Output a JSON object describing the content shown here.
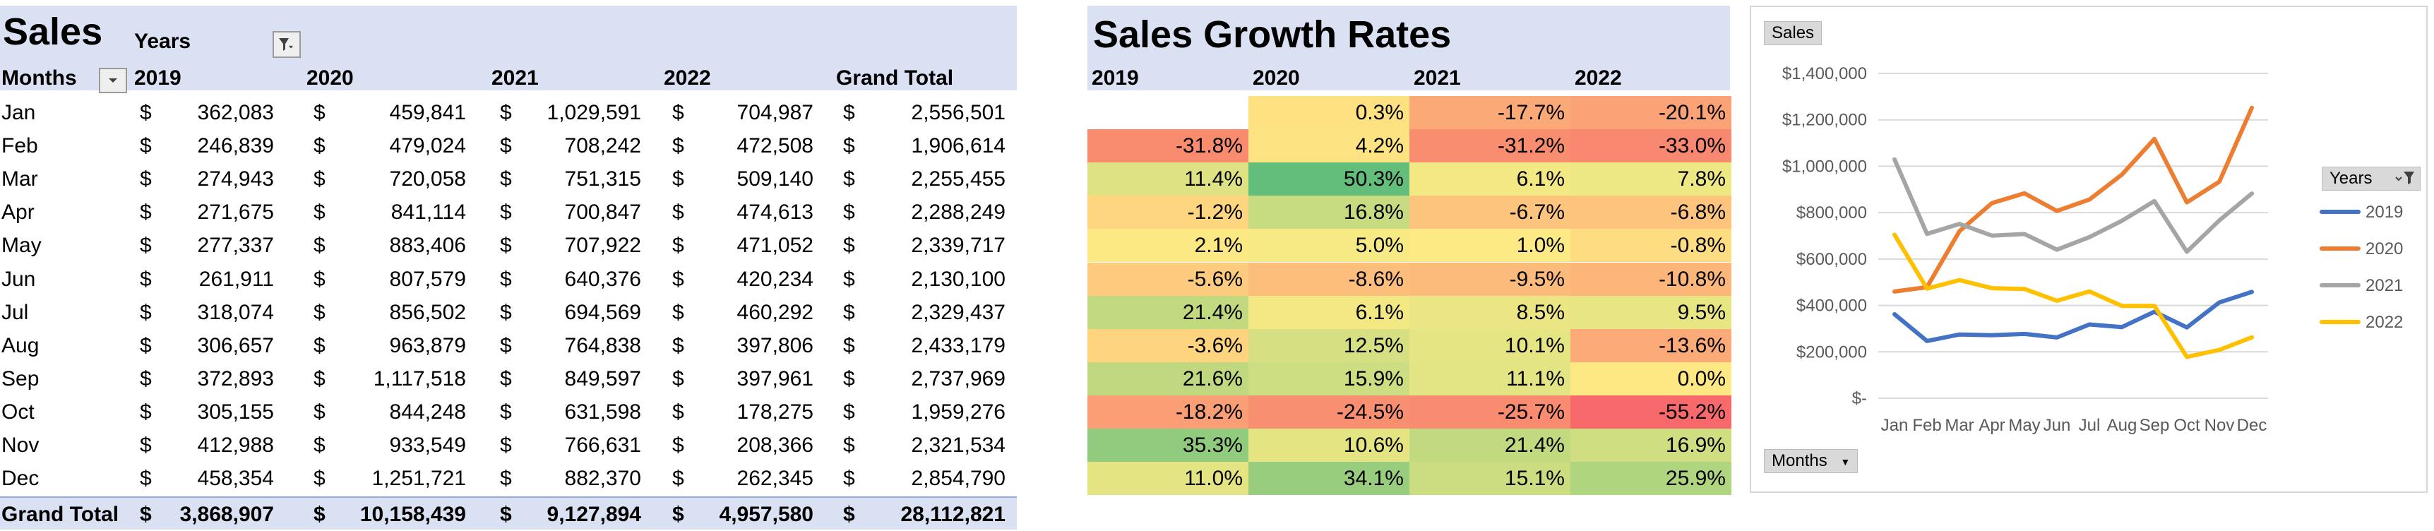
{
  "pivot": {
    "title": "Sales",
    "years_label": "Years",
    "months_label": "Months",
    "years": [
      "2019",
      "2020",
      "2021",
      "2022"
    ],
    "grand_total_label": "Grand Total",
    "currency": "$",
    "rows": [
      {
        "month": "Jan",
        "values": [
          "362,083",
          "459,841",
          "1,029,591",
          "704,987"
        ],
        "total": "2,556,501"
      },
      {
        "month": "Feb",
        "values": [
          "246,839",
          "479,024",
          "708,242",
          "472,508"
        ],
        "total": "1,906,614"
      },
      {
        "month": "Mar",
        "values": [
          "274,943",
          "720,058",
          "751,315",
          "509,140"
        ],
        "total": "2,255,455"
      },
      {
        "month": "Apr",
        "values": [
          "271,675",
          "841,114",
          "700,847",
          "474,613"
        ],
        "total": "2,288,249"
      },
      {
        "month": "May",
        "values": [
          "277,337",
          "883,406",
          "707,922",
          "471,052"
        ],
        "total": "2,339,717"
      },
      {
        "month": "Jun",
        "values": [
          "261,911",
          "807,579",
          "640,376",
          "420,234"
        ],
        "total": "2,130,100"
      },
      {
        "month": "Jul",
        "values": [
          "318,074",
          "856,502",
          "694,569",
          "460,292"
        ],
        "total": "2,329,437"
      },
      {
        "month": "Aug",
        "values": [
          "306,657",
          "963,879",
          "764,838",
          "397,806"
        ],
        "total": "2,433,179"
      },
      {
        "month": "Sep",
        "values": [
          "372,893",
          "1,117,518",
          "849,597",
          "397,961"
        ],
        "total": "2,737,969"
      },
      {
        "month": "Oct",
        "values": [
          "305,155",
          "844,248",
          "631,598",
          "178,275"
        ],
        "total": "1,959,276"
      },
      {
        "month": "Nov",
        "values": [
          "412,988",
          "933,549",
          "766,631",
          "208,366"
        ],
        "total": "2,321,534"
      },
      {
        "month": "Dec",
        "values": [
          "458,354",
          "1,251,721",
          "882,370",
          "262,345"
        ],
        "total": "2,854,790"
      }
    ],
    "grand_totals": [
      "3,868,907",
      "10,158,439",
      "9,127,894",
      "4,957,580"
    ],
    "grand_total_all": "28,112,821"
  },
  "growth": {
    "title": "Sales Growth Rates",
    "years": [
      "2019",
      "2020",
      "2021",
      "2022"
    ],
    "rows": [
      [
        "",
        "0.3%",
        "-17.7%",
        "-20.1%"
      ],
      [
        "-31.8%",
        "4.2%",
        "-31.2%",
        "-33.0%"
      ],
      [
        "11.4%",
        "50.3%",
        "6.1%",
        "7.8%"
      ],
      [
        "-1.2%",
        "16.8%",
        "-6.7%",
        "-6.8%"
      ],
      [
        "2.1%",
        "5.0%",
        "1.0%",
        "-0.8%"
      ],
      [
        "-5.6%",
        "-8.6%",
        "-9.5%",
        "-10.8%"
      ],
      [
        "21.4%",
        "6.1%",
        "8.5%",
        "9.5%"
      ],
      [
        "-3.6%",
        "12.5%",
        "10.1%",
        "-13.6%"
      ],
      [
        "21.6%",
        "15.9%",
        "11.1%",
        "0.0%"
      ],
      [
        "-18.2%",
        "-24.5%",
        "-25.7%",
        "-55.2%"
      ],
      [
        "35.3%",
        "10.6%",
        "21.4%",
        "16.9%"
      ],
      [
        "11.0%",
        "34.1%",
        "15.1%",
        "25.9%"
      ]
    ],
    "colors": [
      [
        "#ffffff",
        "#fee282",
        "#fba977",
        "#fba276"
      ],
      [
        "#f98c6f",
        "#fee383",
        "#f98d70",
        "#f98870"
      ],
      [
        "#dfe282",
        "#63be7b",
        "#f2e884",
        "#ede784"
      ],
      [
        "#fed680",
        "#c7db80",
        "#fdc47d",
        "#fdc47d"
      ],
      [
        "#fde984",
        "#f7e984",
        "#feea84",
        "#fedc81"
      ],
      [
        "#fdcb7e",
        "#fdbd7b",
        "#fdbb7b",
        "#fcb67a"
      ],
      [
        "#c1da80",
        "#f2e884",
        "#ebe683",
        "#e8e583"
      ],
      [
        "#fed47f",
        "#d6df81",
        "#e6e583",
        "#fcab78"
      ],
      [
        "#c0d980",
        "#cddd81",
        "#e3e483",
        "#fee884"
      ],
      [
        "#f99e75",
        "#f98f71",
        "#f98b70",
        "#f8696b"
      ],
      [
        "#91cb7d",
        "#e4e483",
        "#c1da80",
        "#d0de82"
      ],
      [
        "#e4e483",
        "#99cd7e",
        "#ccdd81",
        "#b0d57f"
      ]
    ]
  },
  "chart": {
    "sales_chip": "Sales",
    "months_chip": "Months",
    "legend_title": "Years"
  },
  "chart_data": {
    "type": "line",
    "x": [
      "Jan",
      "Feb",
      "Mar",
      "Apr",
      "May",
      "Jun",
      "Jul",
      "Aug",
      "Sep",
      "Oct",
      "Nov",
      "Dec"
    ],
    "ylim": [
      0,
      1400000
    ],
    "y_ticks": [
      "$-",
      "$200,000",
      "$400,000",
      "$600,000",
      "$800,000",
      "$1,000,000",
      "$1,200,000",
      "$1,400,000"
    ],
    "legend_position": "right",
    "grid": true,
    "series": [
      {
        "name": "2019",
        "color": "#4472c4",
        "values": [
          362083,
          246839,
          274943,
          271675,
          277337,
          261911,
          318074,
          306657,
          372893,
          305155,
          412988,
          458354
        ]
      },
      {
        "name": "2020",
        "color": "#ed7d31",
        "values": [
          459841,
          479024,
          720058,
          841114,
          883406,
          807579,
          856502,
          963879,
          1117518,
          844248,
          933549,
          1251721
        ]
      },
      {
        "name": "2021",
        "color": "#a5a5a5",
        "values": [
          1029591,
          708242,
          751315,
          700847,
          707922,
          640376,
          694569,
          764838,
          849597,
          631598,
          766631,
          882370
        ]
      },
      {
        "name": "2022",
        "color": "#ffc000",
        "values": [
          704987,
          472508,
          509140,
          474613,
          471052,
          420234,
          460292,
          397806,
          397961,
          178275,
          208366,
          262345
        ]
      }
    ]
  }
}
